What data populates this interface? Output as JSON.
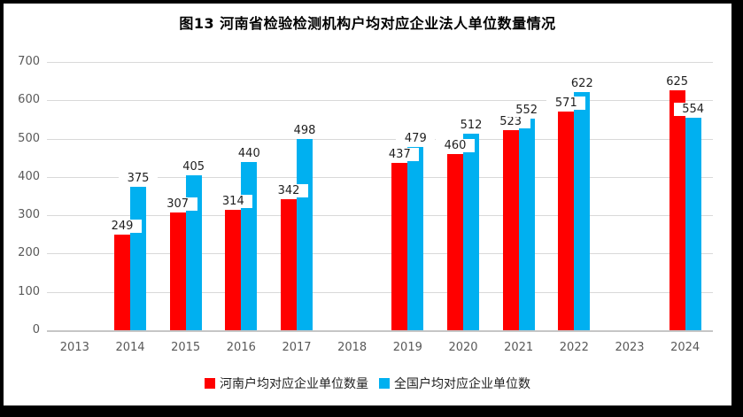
{
  "chart_data": {
    "type": "bar",
    "title": "图13  河南省检验检测机构户均对应企业法人单位数量情况",
    "categories": [
      "2013",
      "2014",
      "2015",
      "2016",
      "2017",
      "2018",
      "2019",
      "2020",
      "2021",
      "2022",
      "2023",
      "2024"
    ],
    "series": [
      {
        "name": "河南户均对应企业单位数量",
        "key": "henan",
        "color": "#FF0000",
        "values": [
          null,
          249,
          307,
          314,
          342,
          null,
          437,
          460,
          523,
          571,
          null,
          625
        ]
      },
      {
        "name": "全国户均对应企业单位数",
        "key": "national",
        "color": "#00B0F0",
        "values": [
          null,
          375,
          405,
          440,
          498,
          null,
          479,
          512,
          552,
          622,
          null,
          554
        ]
      }
    ],
    "ylim": [
      0,
      700
    ],
    "yticks": [
      0,
      100,
      200,
      300,
      400,
      500,
      600,
      700
    ],
    "xlabel": "",
    "ylabel": "",
    "grid": true,
    "legend_position": "bottom",
    "colors": {
      "frame": "#000000",
      "background": "#FFFFFF",
      "gridline": "#D9D9D9",
      "axis_line": "#C6C6C6",
      "tick_label": "#595959",
      "data_label": "#1F1F1F",
      "title": "#000000"
    }
  }
}
